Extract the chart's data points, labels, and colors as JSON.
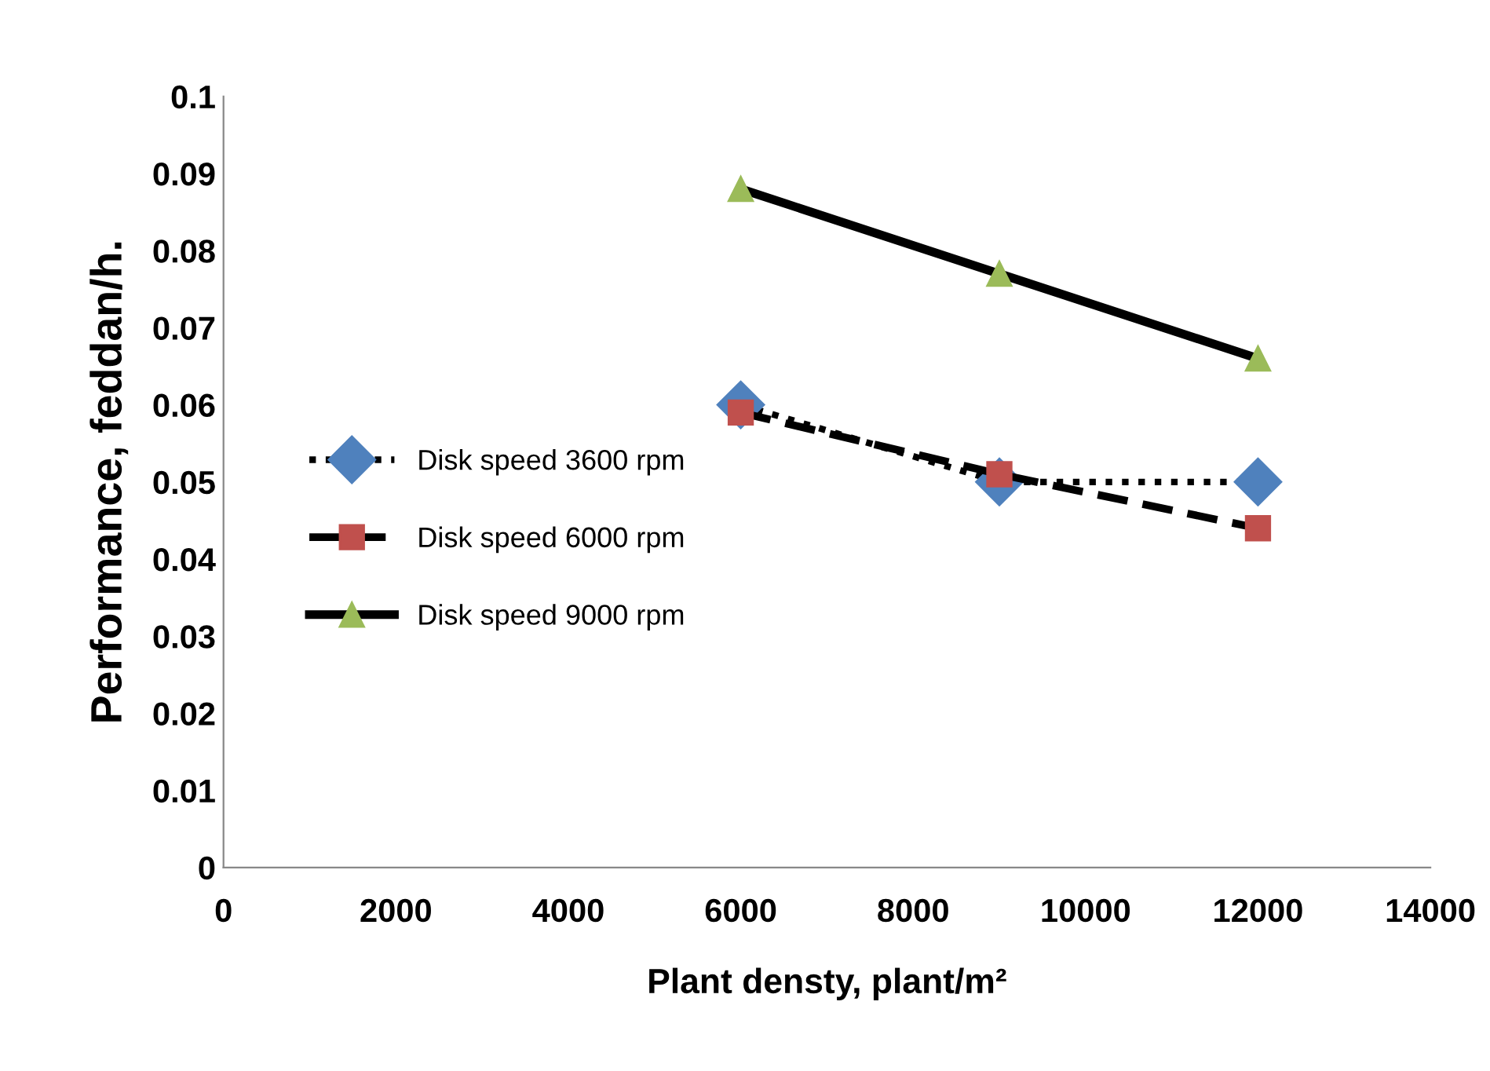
{
  "chart_data": {
    "type": "line",
    "xlabel": "Plant densty, plant/m²",
    "ylabel": "Performance, feddan/h.",
    "x": [
      6000,
      9000,
      12000
    ],
    "series": [
      {
        "name": "Disk speed 3600 rpm",
        "color": "#4f81bd",
        "values": [
          0.06,
          0.05,
          0.05
        ],
        "marker": "diamond",
        "line_style": "dotted"
      },
      {
        "name": "Disk speed 6000 rpm",
        "color": "#c0504d",
        "values": [
          0.059,
          0.051,
          0.044
        ],
        "marker": "square",
        "line_style": "dashed"
      },
      {
        "name": "Disk speed 9000 rpm",
        "color": "#9bbb59",
        "values": [
          0.088,
          0.077,
          0.066
        ],
        "marker": "triangle",
        "line_style": "solid"
      }
    ],
    "xlim": [
      0,
      14000
    ],
    "xticks": [
      0,
      2000,
      4000,
      6000,
      8000,
      10000,
      12000,
      14000
    ],
    "ylim": [
      0,
      0.1
    ],
    "yticks": [
      0,
      0.01,
      0.02,
      0.03,
      0.04,
      0.05,
      0.06,
      0.07,
      0.08,
      0.09,
      0.1
    ],
    "grid": false,
    "legend": "center left"
  }
}
